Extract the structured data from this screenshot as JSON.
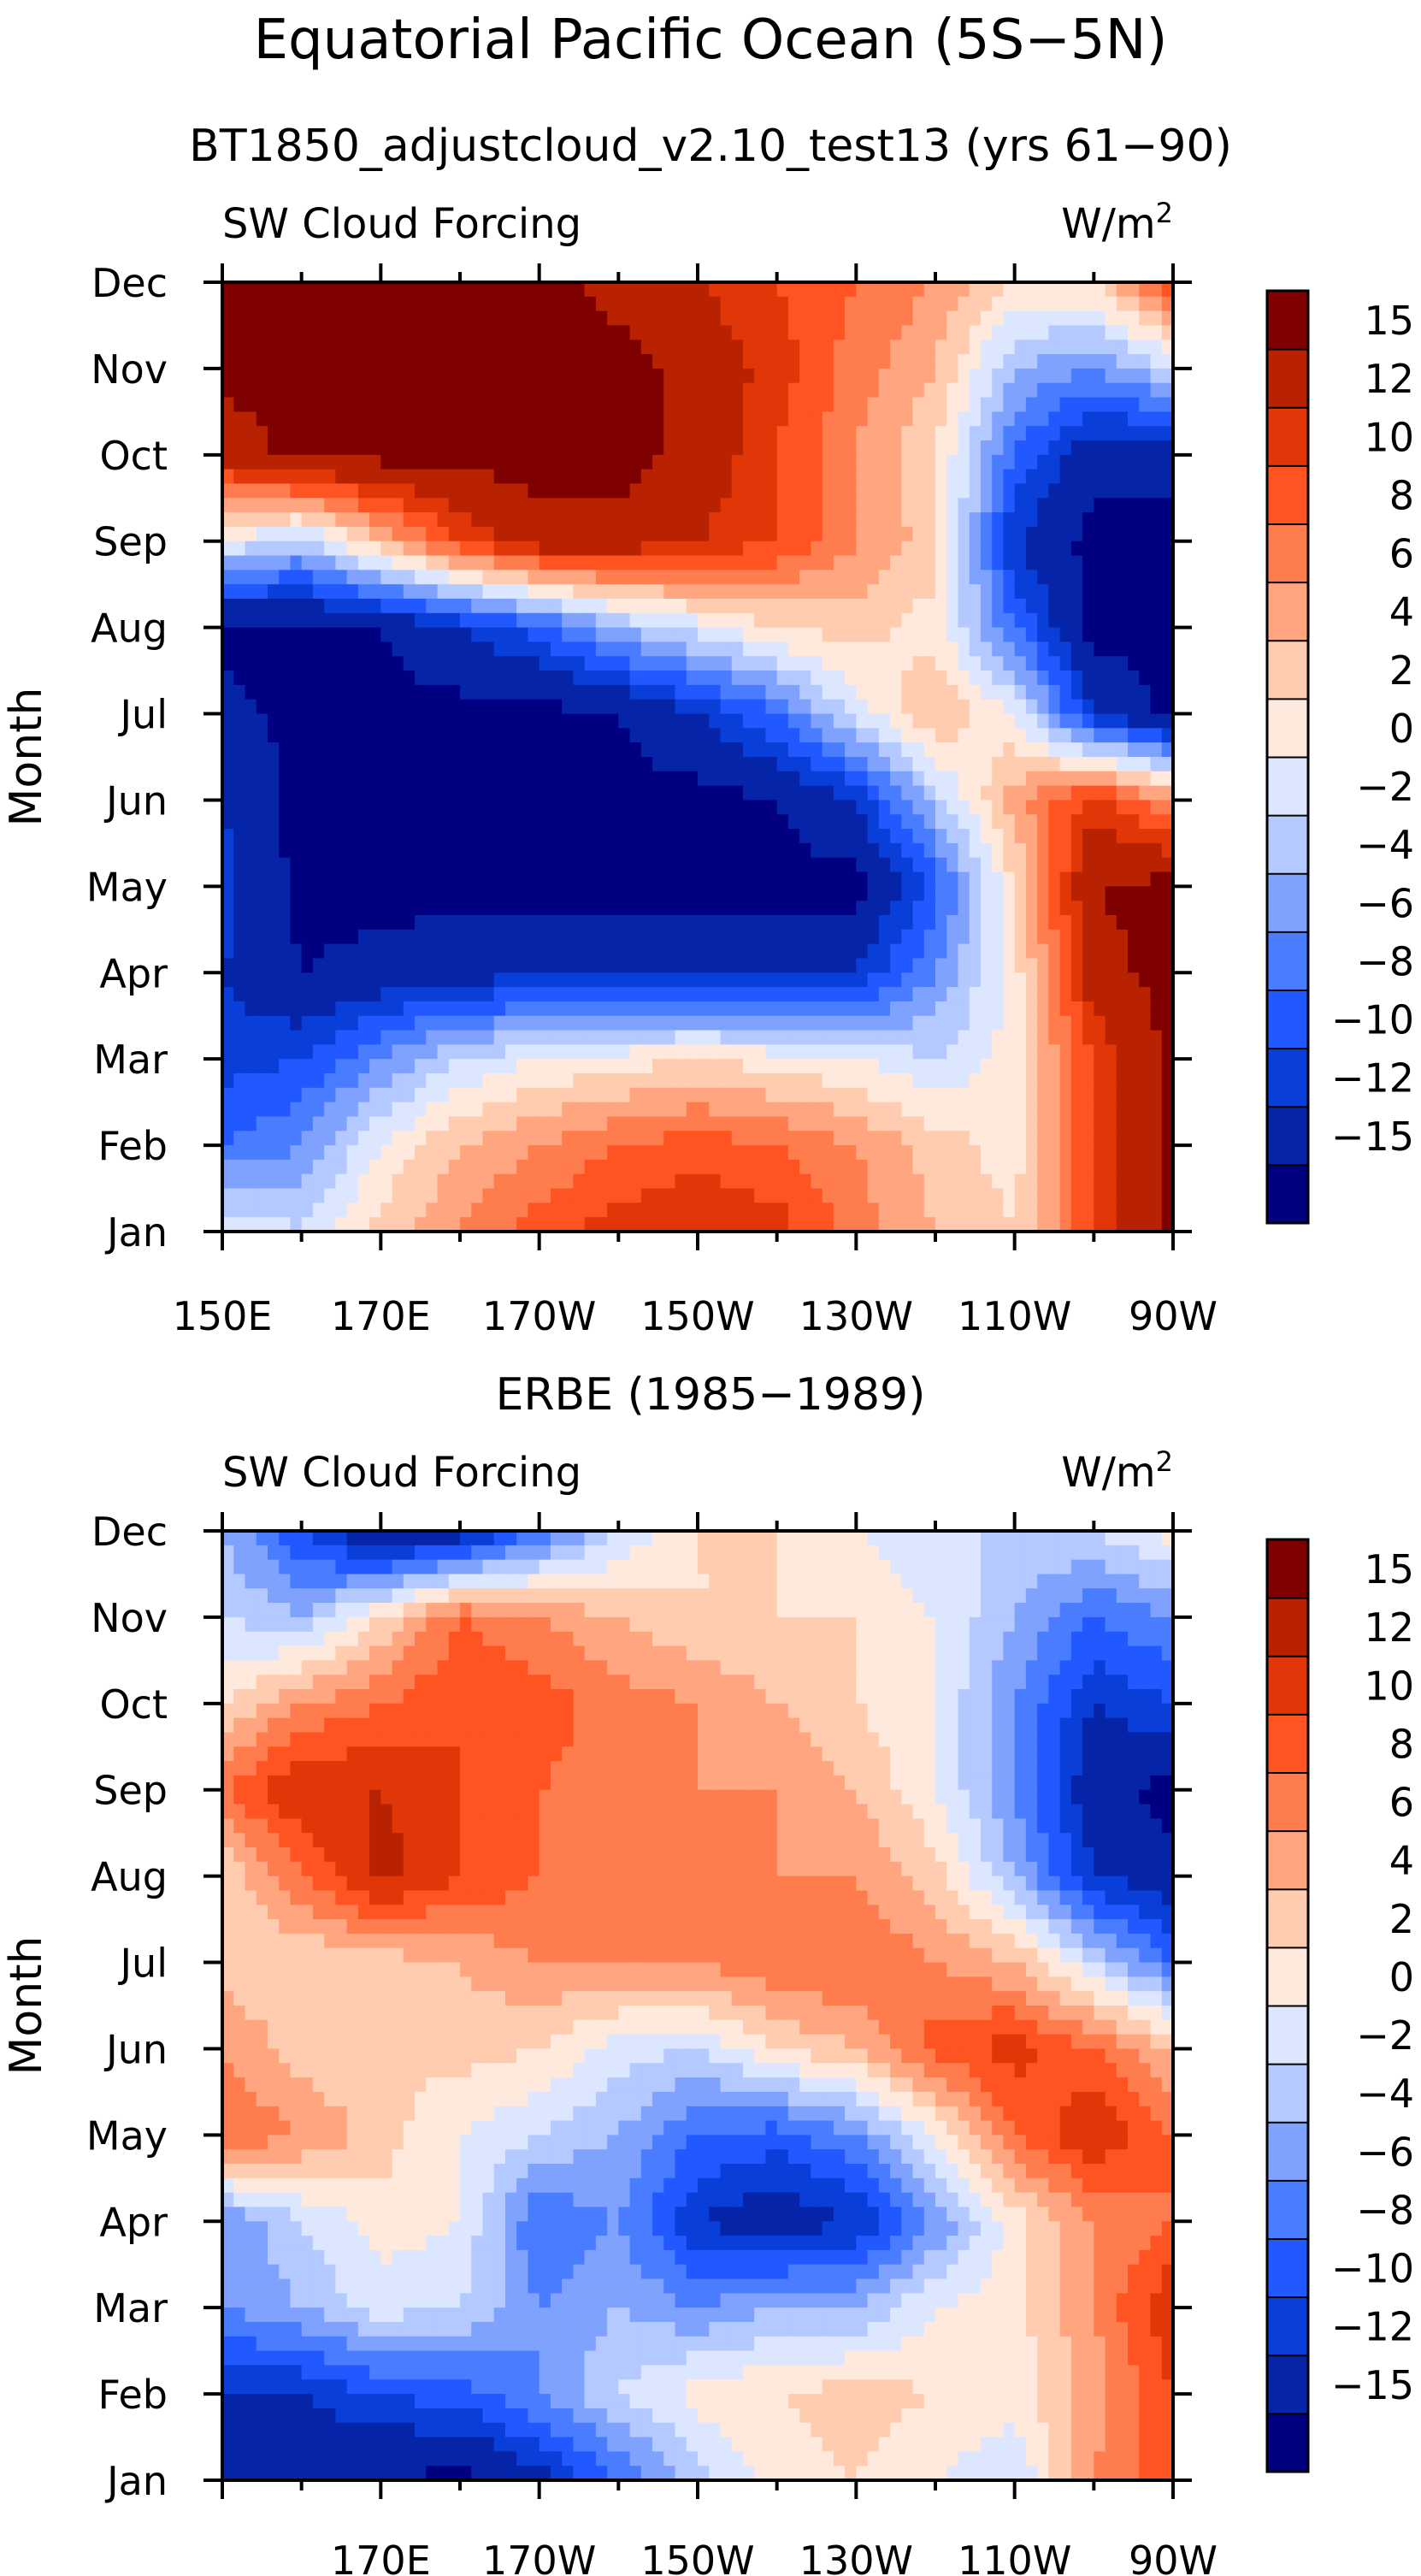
{
  "figure": {
    "title": "Equatorial Pacific Ocean (5S−5N)"
  },
  "chart_data": [
    {
      "type": "heatmap",
      "title": "BT1850_adjustcloud_v2.10_test13 (yrs 61−90)",
      "left_label": "SW Cloud Forcing",
      "units_base": "W/m",
      "units_exp": "2",
      "ylabel": "Month",
      "months": [
        "Jan",
        "Feb",
        "Mar",
        "Apr",
        "May",
        "Jun",
        "Jul",
        "Aug",
        "Sep",
        "Oct",
        "Nov",
        "Dec"
      ],
      "xlim": [
        150,
        270
      ],
      "x_ticks": [
        {
          "lon": 150,
          "label": "150E"
        },
        {
          "lon": 170,
          "label": "170E"
        },
        {
          "lon": 190,
          "label": "170W"
        },
        {
          "lon": 210,
          "label": "150W"
        },
        {
          "lon": 230,
          "label": "130W"
        },
        {
          "lon": 250,
          "label": "110W"
        },
        {
          "lon": 270,
          "label": "90W"
        }
      ],
      "lon": [
        150,
        160,
        170,
        180,
        190,
        200,
        210,
        220,
        230,
        240,
        250,
        260,
        270
      ],
      "values": [
        [
          0,
          -2,
          3,
          6,
          9,
          11,
          12,
          11,
          7,
          4,
          2,
          10,
          16
        ],
        [
          -8,
          -6,
          0,
          4,
          6,
          8,
          9,
          8,
          6,
          3,
          1,
          10,
          16
        ],
        [
          -11,
          -10,
          -6,
          -2,
          0,
          1,
          2,
          1,
          0,
          -2,
          1,
          10,
          16
        ],
        [
          -12,
          -15,
          -14,
          -13,
          -13,
          -13,
          -13,
          -13,
          -12,
          -6,
          1,
          14,
          16
        ],
        [
          -11,
          -16,
          -16,
          -16,
          -16,
          -16,
          -16,
          -16,
          -16,
          -9,
          2,
          15,
          16
        ],
        [
          -12,
          -16,
          -16,
          -16,
          -16,
          -16,
          -16,
          -15,
          -12,
          -3,
          5,
          11,
          6
        ],
        [
          -14,
          -16,
          -16,
          -16,
          -16,
          -15,
          -12,
          -8,
          -1,
          4,
          0,
          -12,
          -16
        ],
        [
          -16,
          -16,
          -15,
          -12,
          -9,
          -4,
          -1,
          2,
          3,
          1,
          -8,
          -16,
          -16
        ],
        [
          0,
          -3,
          4,
          10,
          14,
          14,
          12,
          10,
          6,
          3,
          -12,
          -16,
          -16
        ],
        [
          13,
          16,
          16,
          16,
          16,
          16,
          14,
          10,
          6,
          2,
          -8,
          -14,
          -14
        ],
        [
          16,
          16,
          16,
          16,
          16,
          16,
          14,
          11,
          7,
          4,
          -4,
          -6,
          -2
        ],
        [
          16,
          16,
          16,
          16,
          16,
          14,
          12,
          10,
          8,
          6,
          2,
          2,
          10
        ]
      ],
      "colorbar_labels": [
        "15",
        "12",
        "10",
        "8",
        "6",
        "4",
        "2",
        "0",
        "−2",
        "−4",
        "−6",
        "−8",
        "−10",
        "−12",
        "−15"
      ]
    },
    {
      "type": "heatmap",
      "title": "ERBE (1985−1989)",
      "left_label": "SW Cloud Forcing",
      "units_base": "W/m",
      "units_exp": "2",
      "ylabel": "Month",
      "months": [
        "Jan",
        "Feb",
        "Mar",
        "Apr",
        "May",
        "Jun",
        "Jul",
        "Aug",
        "Sep",
        "Oct",
        "Nov",
        "Dec"
      ],
      "xlim": [
        150,
        270
      ],
      "x_ticks": [
        {
          "lon": 170,
          "label": "170E"
        },
        {
          "lon": 190,
          "label": "170W"
        },
        {
          "lon": 210,
          "label": "150W"
        },
        {
          "lon": 230,
          "label": "130W"
        },
        {
          "lon": 250,
          "label": "110W"
        },
        {
          "lon": 270,
          "label": "90W"
        }
      ],
      "lon": [
        150,
        160,
        170,
        180,
        190,
        200,
        210,
        220,
        230,
        240,
        250,
        260,
        270
      ],
      "values": [
        [
          -12,
          -14,
          -15,
          -16,
          -13,
          -8,
          -3,
          1,
          2,
          0,
          -2,
          6,
          10
        ],
        [
          -12,
          -12,
          -10,
          -9,
          -6,
          -2,
          1,
          2,
          3,
          2,
          1,
          5,
          10
        ],
        [
          -6,
          -4,
          -1,
          -2,
          -6,
          -4,
          -6,
          -4,
          -4,
          0,
          1,
          6,
          12
        ],
        [
          -6,
          -2,
          1,
          0,
          -8,
          -6,
          -12,
          -14,
          -12,
          -6,
          1,
          6,
          8
        ],
        [
          8,
          6,
          3,
          0,
          -2,
          -4,
          -8,
          -9,
          -6,
          0,
          8,
          12,
          8
        ],
        [
          6,
          3,
          2,
          3,
          2,
          -1,
          -2,
          2,
          4,
          9,
          11,
          8,
          4
        ],
        [
          3,
          2,
          3,
          4,
          6,
          6,
          6,
          8,
          8,
          6,
          4,
          -2,
          -8
        ],
        [
          2,
          8,
          13,
          10,
          8,
          8,
          7,
          6,
          6,
          3,
          -4,
          -12,
          -14
        ],
        [
          8,
          12,
          12,
          10,
          8,
          7,
          6,
          6,
          4,
          0,
          -6,
          -14,
          -16
        ],
        [
          2,
          6,
          8,
          10,
          9,
          7,
          6,
          4,
          2,
          0,
          -6,
          -12,
          -10
        ],
        [
          -2,
          -4,
          2,
          8,
          6,
          4,
          2,
          2,
          2,
          0,
          -4,
          -8,
          -6
        ],
        [
          -4,
          -10,
          -16,
          -14,
          -8,
          -2,
          2,
          2,
          0,
          -2,
          -2,
          -2,
          1
        ]
      ],
      "colorbar_labels": [
        "15",
        "12",
        "10",
        "8",
        "6",
        "4",
        "2",
        "0",
        "−2",
        "−4",
        "−6",
        "−8",
        "−10",
        "−12",
        "−15"
      ]
    }
  ],
  "colorscale": {
    "levels": [
      -15,
      -12,
      -10,
      -8,
      -6,
      -4,
      -2,
      0,
      2,
      4,
      6,
      8,
      10,
      12,
      15
    ],
    "colors": [
      "#000080",
      "#0624a8",
      "#0a3ed8",
      "#2158ff",
      "#4a7cff",
      "#7fa2ff",
      "#b4c9ff",
      "#dce6ff",
      "#ffe9dc",
      "#ffccb0",
      "#ffa680",
      "#ff7c4e",
      "#ff5422",
      "#e03608",
      "#b82200",
      "#7f0000"
    ]
  }
}
